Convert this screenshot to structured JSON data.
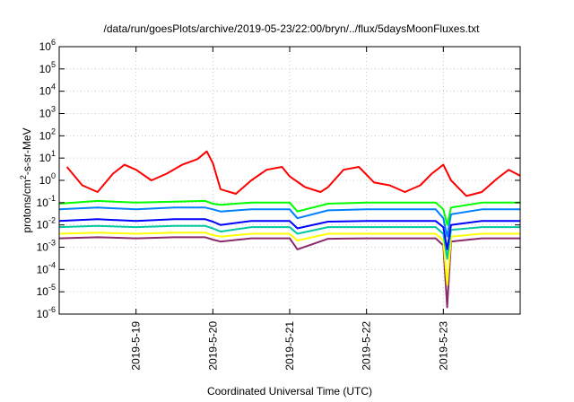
{
  "chart_data": {
    "type": "line",
    "title": "/data/run/goesPlots/archive/2019-05-23/22:00/bryn/../flux/5daysMoonFluxes.txt",
    "xlabel": "Coordinated Universal Time (UTC)",
    "ylabel": "protons/cm²-s-sr-MeV",
    "ylabel_base": "protons/cm",
    "ylabel_sup": "2",
    "ylabel_rest": "-s-sr-MeV",
    "yscale": "log",
    "ylim": [
      1e-06,
      1000000.0
    ],
    "xlim": [
      "2019-05-18T00:00",
      "2019-05-24T00:00"
    ],
    "xlim_days": [
      18.0,
      24.0
    ],
    "grid": true,
    "x_ticks": [
      {
        "label": "2019-5-19",
        "day": 19
      },
      {
        "label": "2019-5-20",
        "day": 20
      },
      {
        "label": "2019-5-21",
        "day": 21
      },
      {
        "label": "2019-5-22",
        "day": 22
      },
      {
        "label": "2019-5-23",
        "day": 23
      }
    ],
    "y_ticks": [
      {
        "base": "10",
        "exp": "-6",
        "value": 1e-06
      },
      {
        "base": "10",
        "exp": "-5",
        "value": 1e-05
      },
      {
        "base": "10",
        "exp": "-4",
        "value": 0.0001
      },
      {
        "base": "10",
        "exp": "-3",
        "value": 0.001
      },
      {
        "base": "10",
        "exp": "-2",
        "value": 0.01
      },
      {
        "base": "10",
        "exp": "-1",
        "value": 0.1
      },
      {
        "base": "10",
        "exp": "0",
        "value": 1.0
      },
      {
        "base": "10",
        "exp": "1",
        "value": 10.0
      },
      {
        "base": "10",
        "exp": "2",
        "value": 100.0
      },
      {
        "base": "10",
        "exp": "3",
        "value": 1000.0
      },
      {
        "base": "10",
        "exp": "4",
        "value": 10000.0
      },
      {
        "base": "10",
        "exp": "5",
        "value": 100000.0
      },
      {
        "base": "10",
        "exp": "6",
        "value": 1000000.0
      }
    ],
    "series": [
      {
        "color": "#ff0000",
        "x": [
          18.1,
          18.3,
          18.5,
          18.7,
          18.85,
          19.0,
          19.2,
          19.4,
          19.6,
          19.8,
          19.92,
          20.0,
          20.1,
          20.3,
          20.5,
          20.7,
          20.9,
          21.0,
          21.2,
          21.4,
          21.5,
          21.7,
          21.9,
          22.1,
          22.3,
          22.5,
          22.7,
          22.85,
          23.0,
          23.1,
          23.3,
          23.5,
          23.7,
          23.85,
          24.0
        ],
        "y": [
          4,
          0.6,
          0.3,
          2,
          5,
          3,
          1,
          2,
          5,
          9,
          20,
          6,
          0.4,
          0.25,
          1,
          3,
          4,
          1.5,
          0.5,
          0.3,
          0.5,
          3,
          4,
          0.8,
          0.6,
          0.3,
          0.6,
          2,
          5,
          1,
          0.2,
          0.3,
          1.2,
          3,
          1.6
        ]
      },
      {
        "color": "#00ff00",
        "x": [
          18.0,
          18.5,
          19.0,
          19.5,
          19.9,
          20.0,
          20.1,
          20.5,
          21.0,
          21.1,
          21.5,
          22.0,
          22.5,
          22.9,
          23.0,
          23.05,
          23.1,
          23.5,
          24.0
        ],
        "y": [
          0.09,
          0.12,
          0.1,
          0.11,
          0.12,
          0.09,
          0.08,
          0.1,
          0.1,
          0.04,
          0.09,
          0.1,
          0.1,
          0.1,
          0.05,
          0.01,
          0.06,
          0.1,
          0.1
        ]
      },
      {
        "color": "#0080ff",
        "x": [
          18.0,
          18.5,
          19.0,
          19.5,
          19.9,
          20.0,
          20.1,
          20.5,
          21.0,
          21.1,
          21.5,
          22.0,
          22.5,
          22.9,
          23.0,
          23.05,
          23.1,
          23.5,
          24.0
        ],
        "y": [
          0.05,
          0.06,
          0.05,
          0.06,
          0.06,
          0.05,
          0.04,
          0.05,
          0.05,
          0.02,
          0.045,
          0.05,
          0.05,
          0.05,
          0.02,
          0.003,
          0.03,
          0.05,
          0.05
        ]
      },
      {
        "color": "#0000ff",
        "x": [
          18.0,
          18.5,
          19.0,
          19.5,
          19.9,
          20.0,
          20.1,
          20.5,
          21.0,
          21.1,
          21.5,
          22.0,
          22.5,
          22.9,
          23.0,
          23.05,
          23.1,
          23.5,
          24.0
        ],
        "y": [
          0.015,
          0.018,
          0.015,
          0.018,
          0.018,
          0.014,
          0.01,
          0.015,
          0.015,
          0.007,
          0.014,
          0.015,
          0.015,
          0.015,
          0.008,
          0.0008,
          0.01,
          0.015,
          0.015
        ]
      },
      {
        "color": "#00c8a0",
        "x": [
          18.0,
          18.5,
          19.0,
          19.5,
          19.9,
          20.0,
          20.1,
          20.5,
          21.0,
          21.1,
          21.5,
          22.0,
          22.5,
          22.9,
          23.0,
          23.05,
          23.1,
          23.5,
          24.0
        ],
        "y": [
          0.008,
          0.009,
          0.008,
          0.009,
          0.009,
          0.007,
          0.005,
          0.008,
          0.008,
          0.004,
          0.008,
          0.008,
          0.008,
          0.008,
          0.004,
          0.0003,
          0.006,
          0.008,
          0.008
        ]
      },
      {
        "color": "#ffff00",
        "x": [
          18.0,
          18.5,
          19.0,
          19.5,
          19.9,
          20.0,
          20.1,
          20.5,
          21.0,
          21.1,
          21.5,
          22.0,
          22.5,
          22.9,
          23.0,
          23.05,
          23.1,
          23.5,
          24.0
        ],
        "y": [
          0.004,
          0.0045,
          0.004,
          0.0045,
          0.0045,
          0.0035,
          0.003,
          0.004,
          0.004,
          0.002,
          0.004,
          0.004,
          0.004,
          0.004,
          0.002,
          2e-05,
          0.003,
          0.004,
          0.004
        ]
      },
      {
        "color": "#8b2a6b",
        "x": [
          18.0,
          18.5,
          19.0,
          19.5,
          19.9,
          20.0,
          20.1,
          20.5,
          21.0,
          21.1,
          21.5,
          22.0,
          22.5,
          22.9,
          23.0,
          23.05,
          23.1,
          23.5,
          24.0
        ],
        "y": [
          0.0025,
          0.0028,
          0.0025,
          0.0028,
          0.0028,
          0.0022,
          0.0018,
          0.0025,
          0.0025,
          0.0008,
          0.0024,
          0.0025,
          0.0025,
          0.0025,
          0.0012,
          2e-06,
          0.0018,
          0.0025,
          0.0025
        ]
      }
    ]
  }
}
